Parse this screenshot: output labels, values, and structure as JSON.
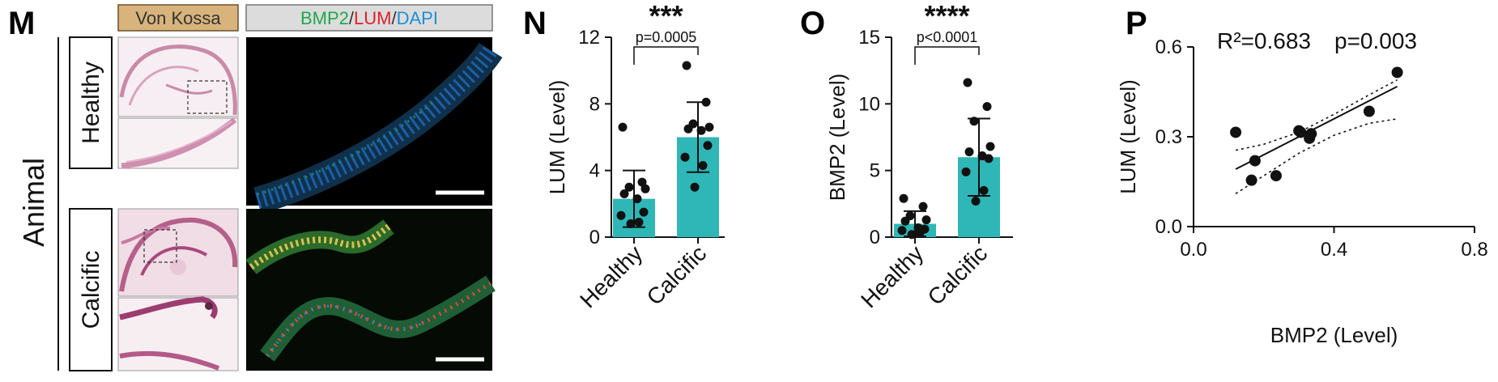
{
  "panel_m": {
    "letter": "M",
    "group_label": "Animal",
    "stain_header": "Von Kossa",
    "if_header": {
      "green_text": "BMP2",
      "red_text": "LUM",
      "blue_text": "DAPI",
      "separator": "/",
      "green_color": "#1fa84b",
      "red_color": "#e0202a",
      "blue_color": "#1f8fd6"
    },
    "rows": [
      {
        "label": "Healthy",
        "color": "#111111"
      },
      {
        "label": "Calcific",
        "color": "#9a6a32"
      }
    ],
    "header_bg": "#d8b47c",
    "if_header_bg": "#dcdcdc"
  },
  "chart_data": [
    {
      "panel": "N",
      "type": "bar",
      "categories": [
        "Healthy",
        "Calcific"
      ],
      "values": [
        2.3,
        6.0
      ],
      "errors": [
        1.7,
        2.1
      ],
      "points": [
        [
          6.6,
          3.3,
          3.0,
          2.9,
          2.6,
          2.3,
          1.5,
          1.3,
          0.9,
          0.8
        ],
        [
          10.3,
          8.1,
          6.8,
          6.6,
          6.5,
          6.4,
          5.5,
          4.8,
          4.3,
          3.0
        ]
      ],
      "ylabel": "LUM (Level)",
      "ylim": [
        0,
        12
      ],
      "yticks": [
        "0",
        "4",
        "8",
        "12"
      ],
      "significance": "***",
      "pvalue": "p=0.0005",
      "bar_color": "#2fb7b7"
    },
    {
      "panel": "O",
      "type": "bar",
      "categories": [
        "Healthy",
        "Calcific"
      ],
      "values": [
        1.0,
        6.0
      ],
      "errors": [
        0.95,
        2.9
      ],
      "points": [
        [
          2.9,
          2.3,
          1.6,
          1.3,
          1.2,
          0.7,
          0.6,
          0.5,
          0.3,
          0.2
        ],
        [
          11.6,
          9.8,
          8.7,
          6.8,
          6.4,
          6.1,
          5.9,
          4.9,
          3.5,
          2.7
        ]
      ],
      "ylabel": "BMP2 (Level)",
      "ylim": [
        0,
        15
      ],
      "yticks": [
        "0",
        "5",
        "10",
        "15"
      ],
      "significance": "****",
      "pvalue": "p<0.0001",
      "bar_color": "#2fb7b7"
    },
    {
      "panel": "P",
      "type": "scatter",
      "x": [
        0.12,
        0.175,
        0.165,
        0.235,
        0.3,
        0.305,
        0.33,
        0.335,
        0.5,
        0.58
      ],
      "y": [
        0.315,
        0.22,
        0.155,
        0.17,
        0.32,
        0.315,
        0.295,
        0.31,
        0.385,
        0.515
      ],
      "fit": {
        "slope": 0.6,
        "intercept": 0.12
      },
      "ci_band": {
        "x": [
          0.12,
          0.2,
          0.3,
          0.4,
          0.5,
          0.58
        ],
        "upper": [
          0.255,
          0.275,
          0.315,
          0.375,
          0.44,
          0.49
        ],
        "lower": [
          0.11,
          0.17,
          0.245,
          0.305,
          0.345,
          0.36
        ]
      },
      "xlabel": "BMP2 (Level)",
      "ylabel": "LUM (Level)",
      "xlim": [
        0.0,
        0.8
      ],
      "ylim": [
        0.0,
        0.6
      ],
      "xticks": [
        "0.0",
        "0.4",
        "0.8"
      ],
      "yticks": [
        "0.0",
        "0.3",
        "0.6"
      ],
      "r2_text": "R²=0.683",
      "p_text": "p=0.003"
    }
  ],
  "panel_letters": {
    "n": "N",
    "o": "O",
    "p": "P"
  }
}
